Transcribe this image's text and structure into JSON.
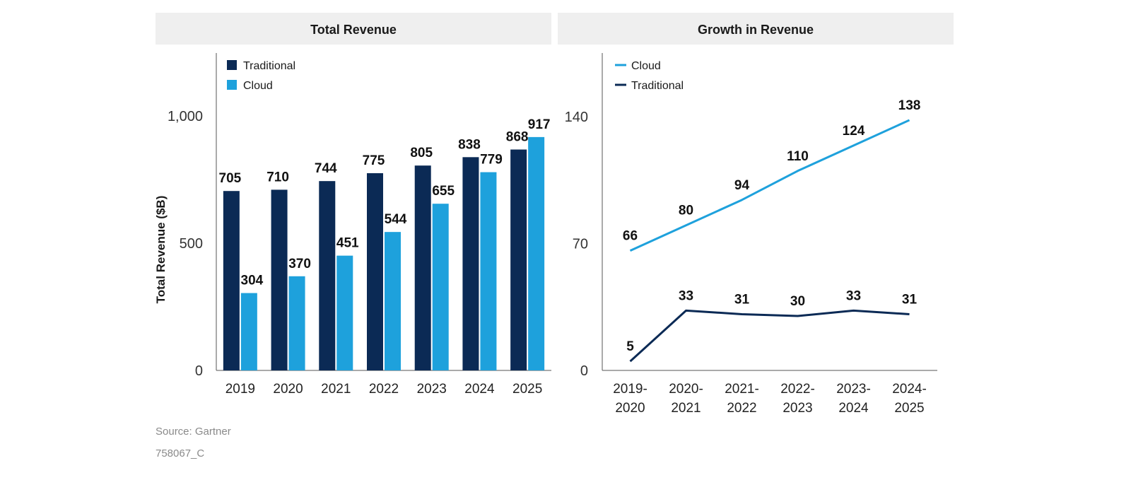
{
  "colors": {
    "traditional": "#0b2a55",
    "cloud": "#1ea1dc",
    "header_bg": "#efefef",
    "axis": "#555555"
  },
  "chart_data": [
    {
      "type": "bar",
      "title": "Total Revenue",
      "ylabel": "Total Revenue ($B)",
      "xlabel": "",
      "categories": [
        "2019",
        "2020",
        "2021",
        "2022",
        "2023",
        "2024",
        "2025"
      ],
      "series": [
        {
          "name": "Traditional",
          "color": "#0b2a55",
          "values": [
            705,
            710,
            744,
            775,
            805,
            838,
            868
          ]
        },
        {
          "name": "Cloud",
          "color": "#1ea1dc",
          "values": [
            304,
            370,
            451,
            544,
            655,
            779,
            917
          ]
        }
      ],
      "ylim": [
        0,
        1250
      ],
      "yticks": [
        0,
        500,
        1000
      ],
      "ytick_labels": [
        "0",
        "500",
        "1,000"
      ],
      "legend": "top-left",
      "grid": false
    },
    {
      "type": "line",
      "title": "Growth in Revenue",
      "xlabel": "",
      "ylabel": "",
      "categories": [
        [
          "2019-",
          "2020"
        ],
        [
          "2020-",
          "2021"
        ],
        [
          "2021-",
          "2022"
        ],
        [
          "2022-",
          "2023"
        ],
        [
          "2023-",
          "2024"
        ],
        [
          "2024-",
          "2025"
        ]
      ],
      "series": [
        {
          "name": "Cloud",
          "color": "#1ea1dc",
          "values": [
            66,
            80,
            94,
            110,
            124,
            138
          ]
        },
        {
          "name": "Traditional",
          "color": "#0b2a55",
          "values": [
            5,
            33,
            31,
            30,
            33,
            31
          ]
        }
      ],
      "ylim": [
        0,
        175
      ],
      "yticks": [
        0,
        70,
        140
      ],
      "ytick_labels": [
        "0",
        "70",
        "140"
      ],
      "legend": "top-left",
      "grid": false
    }
  ],
  "footer": {
    "source": "Source: Gartner",
    "id": "758067_C"
  }
}
